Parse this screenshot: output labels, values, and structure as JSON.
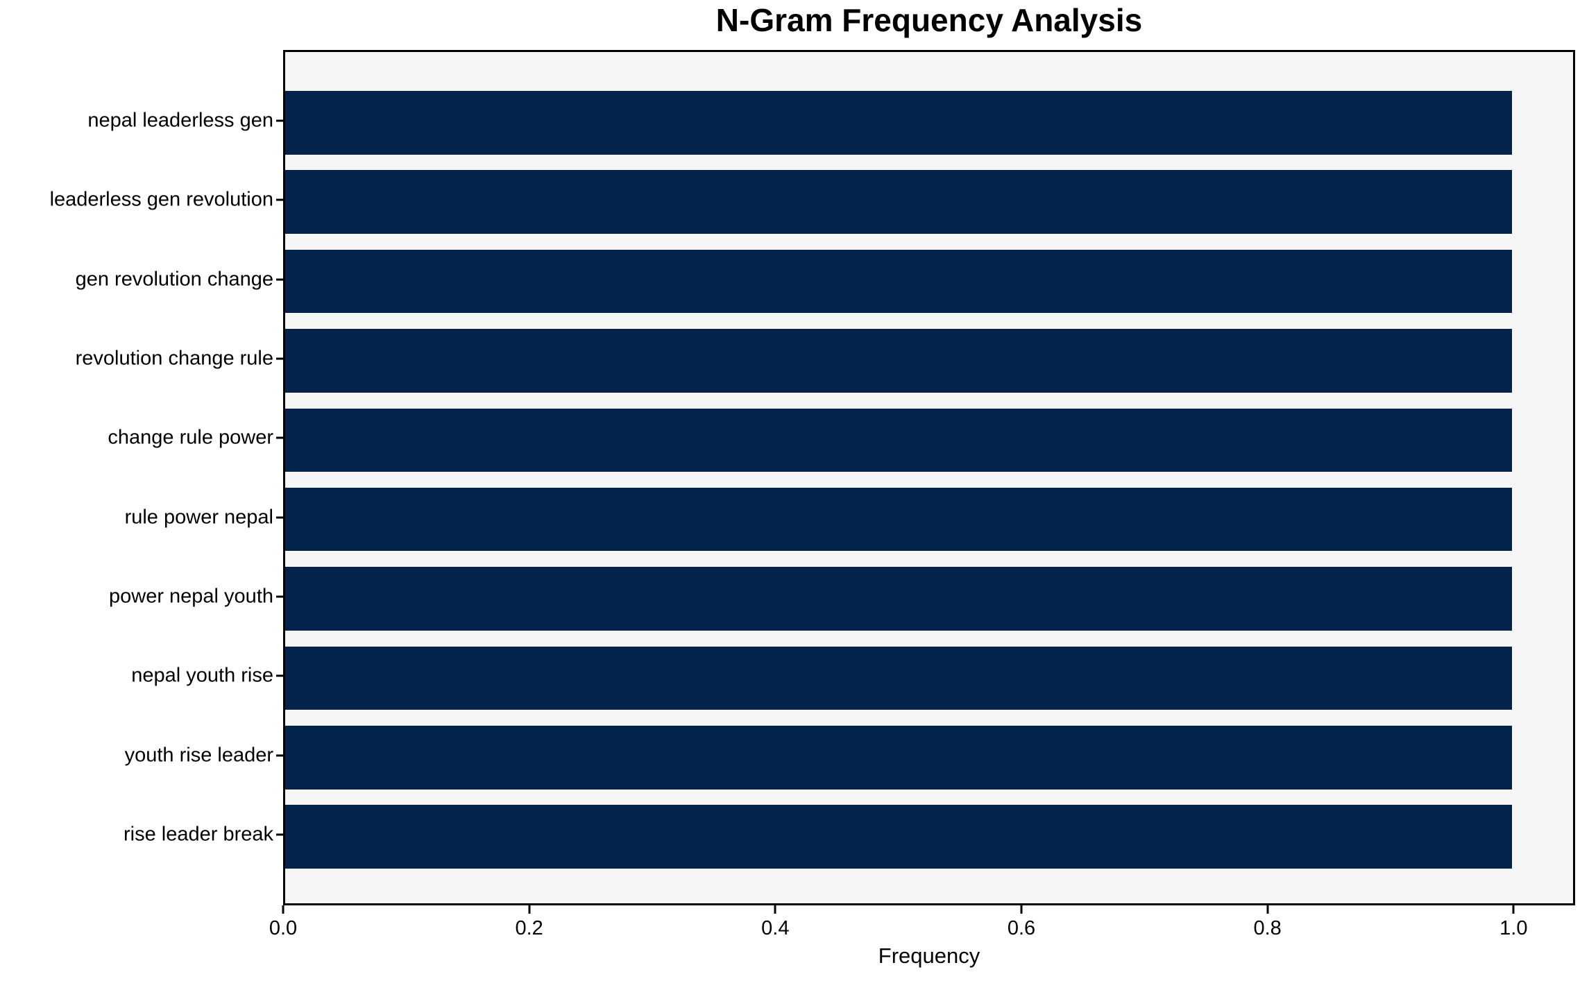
{
  "chart_data": {
    "type": "bar",
    "orientation": "horizontal",
    "title": "N-Gram Frequency Analysis",
    "xlabel": "Frequency",
    "ylabel": "",
    "categories": [
      "nepal leaderless gen",
      "leaderless gen revolution",
      "gen revolution change",
      "revolution change rule",
      "change rule power",
      "rule power nepal",
      "power nepal youth",
      "nepal youth rise",
      "youth rise leader",
      "rise leader break"
    ],
    "values": [
      1.0,
      1.0,
      1.0,
      1.0,
      1.0,
      1.0,
      1.0,
      1.0,
      1.0,
      1.0
    ],
    "xlim": [
      0,
      1.05
    ],
    "xticks": [
      {
        "value": 0.0,
        "label": "0.0"
      },
      {
        "value": 0.2,
        "label": "0.2"
      },
      {
        "value": 0.4,
        "label": "0.4"
      },
      {
        "value": 0.6,
        "label": "0.6"
      },
      {
        "value": 0.8,
        "label": "0.8"
      },
      {
        "value": 1.0,
        "label": "1.0"
      }
    ],
    "grid": false,
    "legend": null,
    "colors": {
      "bar": "#03234b",
      "plot_background": "#f6f6f7",
      "figure_background": "#ffffff",
      "spine": "#000000",
      "text": "#000000"
    }
  }
}
